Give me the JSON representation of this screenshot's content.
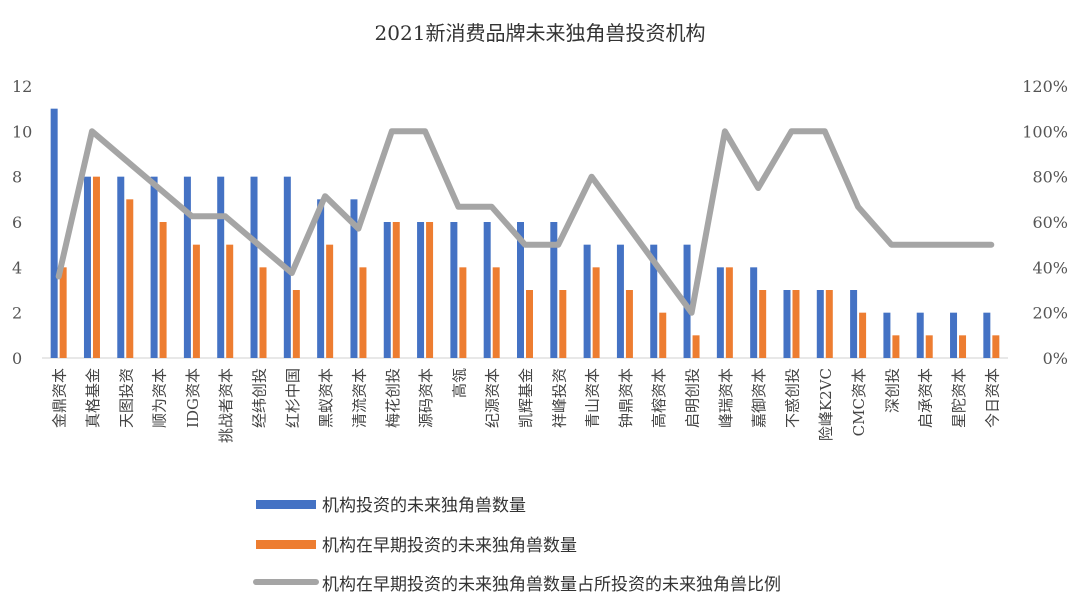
{
  "chart_data": {
    "type": "bar",
    "title": "2021新消费品牌未来独角兽投资机构",
    "xlabel": "",
    "ylabel": "",
    "ylim": [
      0,
      12
    ],
    "y_ticks": [
      "0",
      "2",
      "4",
      "6",
      "8",
      "10",
      "12"
    ],
    "y2lim": [
      0,
      1.2
    ],
    "y2_ticks": [
      "0%",
      "20%",
      "40%",
      "60%",
      "80%",
      "100%",
      "120%"
    ],
    "grid": false,
    "legend_position": "bottom",
    "categories": [
      "金鼎资本",
      "真格基金",
      "天图投资",
      "顺为资本",
      "IDG资本",
      "挑战者资本",
      "经纬创投",
      "红杉中国",
      "黑蚁资本",
      "清流资本",
      "梅花创投",
      "源码资本",
      "高瓴",
      "纪源资本",
      "凯辉基金",
      "祥峰投资",
      "青山资本",
      "钟鼎资本",
      "高榕资本",
      "启明创投",
      "峰瑞资本",
      "嘉御资本",
      "不惑创投",
      "险峰K2VC",
      "CMC资本",
      "深创投",
      "启承资本",
      "星陀资本",
      "今日资本"
    ],
    "series": [
      {
        "name": "机构投资的未来独角兽数量",
        "type": "bar",
        "axis": "left",
        "color": "#4472c4",
        "values": [
          11,
          8,
          8,
          8,
          8,
          8,
          8,
          8,
          7,
          7,
          6,
          6,
          6,
          6,
          6,
          6,
          5,
          5,
          5,
          5,
          4,
          4,
          3,
          3,
          3,
          2,
          2,
          2,
          2
        ]
      },
      {
        "name": "机构在早期投资的未来独角兽数量",
        "type": "bar",
        "axis": "left",
        "color": "#ed7d31",
        "values": [
          4,
          8,
          7,
          6,
          5,
          5,
          4,
          3,
          5,
          4,
          6,
          6,
          4,
          4,
          3,
          3,
          4,
          3,
          2,
          1,
          4,
          3,
          3,
          3,
          2,
          1,
          1,
          1,
          1
        ]
      },
      {
        "name": "机构在早期投资的未来独角兽数量占所投资的未来独角兽比例",
        "type": "line",
        "axis": "right",
        "color": "#a5a5a5",
        "values": [
          0.36,
          1.0,
          0.875,
          0.75,
          0.625,
          0.625,
          0.5,
          0.375,
          0.714,
          0.571,
          1.0,
          1.0,
          0.667,
          0.667,
          0.5,
          0.5,
          0.8,
          0.6,
          0.4,
          0.2,
          1.0,
          0.75,
          1.0,
          1.0,
          0.667,
          0.5,
          0.5,
          0.5,
          0.5
        ]
      }
    ]
  }
}
